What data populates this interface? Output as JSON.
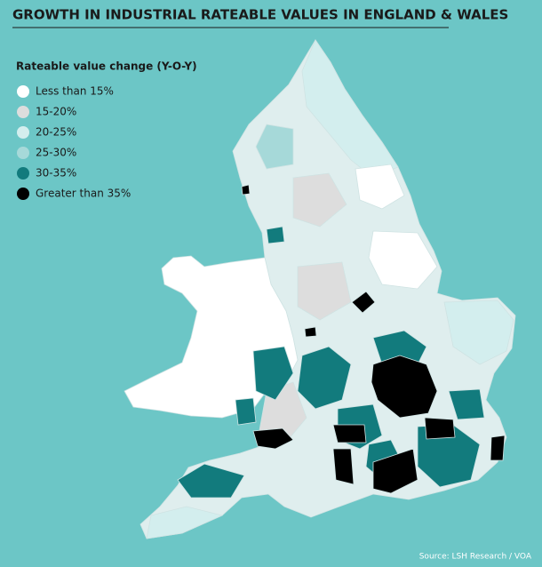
{
  "title": "GROWTH IN INDUSTRIAL RATEABLE VALUES IN ENGLAND & WALES",
  "legend": {
    "title": "Rateable value change (Y-O-Y)",
    "items": [
      {
        "label": "Less than 15%",
        "color": "#ffffff"
      },
      {
        "label": "15-20%",
        "color": "#dddddd"
      },
      {
        "label": "20-25%",
        "color": "#d3eeee"
      },
      {
        "label": "25-30%",
        "color": "#a6d9d9"
      },
      {
        "label": "30-35%",
        "color": "#127b7d"
      },
      {
        "label": "Greater than 35%",
        "color": "#000000"
      }
    ]
  },
  "source": "Source: LSH Research / VOA"
}
